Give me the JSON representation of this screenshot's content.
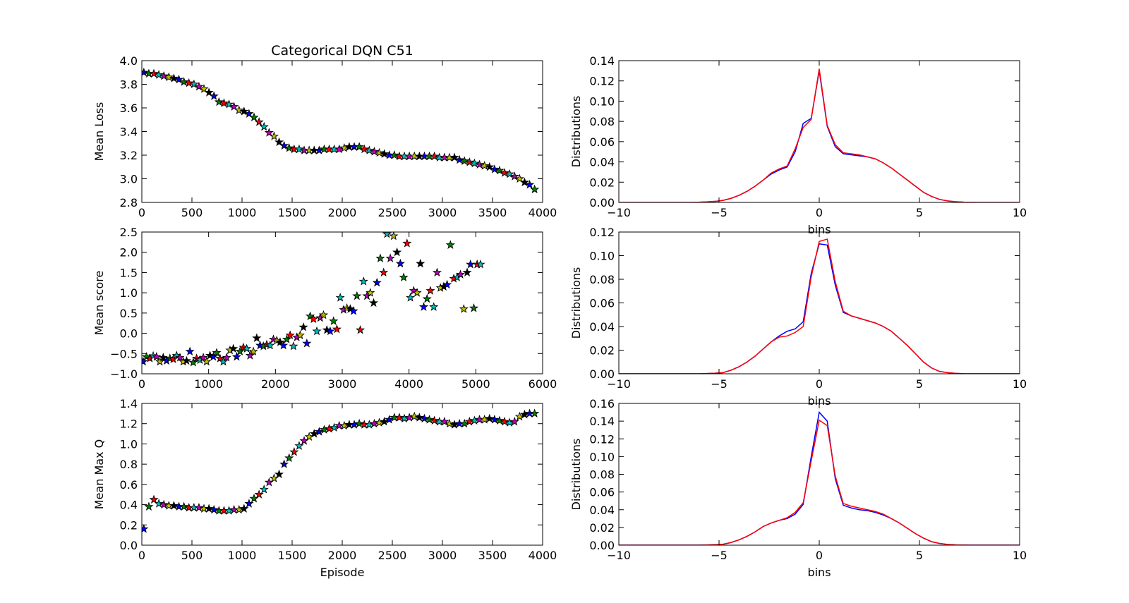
{
  "chart_data": [
    {
      "id": "loss",
      "type": "scatter",
      "title": "Categorical DQN C51",
      "xlabel": "",
      "ylabel": "Mean Loss",
      "xlim": [
        0,
        4000
      ],
      "ylim": [
        2.8,
        4.0
      ],
      "xticks": [
        0,
        500,
        1000,
        1500,
        2000,
        2500,
        3000,
        3500,
        4000
      ],
      "yticks": [
        2.8,
        3.0,
        3.2,
        3.4,
        3.6,
        3.8,
        4.0
      ],
      "marker": "star",
      "marker_colors": [
        "#0000ff",
        "#008000",
        "#ff0000",
        "#00bfbf",
        "#bf00bf",
        "#bfbf00",
        "#000000"
      ],
      "x": [
        20,
        70,
        120,
        170,
        220,
        270,
        320,
        370,
        420,
        470,
        520,
        570,
        620,
        670,
        720,
        770,
        820,
        870,
        920,
        970,
        1020,
        1070,
        1120,
        1170,
        1220,
        1270,
        1320,
        1370,
        1420,
        1470,
        1520,
        1570,
        1620,
        1670,
        1720,
        1770,
        1820,
        1870,
        1920,
        1970,
        2020,
        2070,
        2120,
        2170,
        2220,
        2270,
        2320,
        2370,
        2420,
        2470,
        2520,
        2570,
        2620,
        2670,
        2720,
        2770,
        2820,
        2870,
        2920,
        2970,
        3020,
        3070,
        3120,
        3170,
        3220,
        3270,
        3320,
        3370,
        3420,
        3470,
        3520,
        3570,
        3620,
        3670,
        3720,
        3770,
        3820,
        3870,
        3920
      ],
      "y": [
        3.9,
        3.89,
        3.89,
        3.88,
        3.87,
        3.86,
        3.85,
        3.84,
        3.82,
        3.81,
        3.8,
        3.78,
        3.76,
        3.73,
        3.7,
        3.65,
        3.64,
        3.63,
        3.61,
        3.58,
        3.57,
        3.55,
        3.52,
        3.48,
        3.44,
        3.39,
        3.36,
        3.31,
        3.28,
        3.26,
        3.25,
        3.25,
        3.24,
        3.24,
        3.24,
        3.24,
        3.25,
        3.25,
        3.25,
        3.25,
        3.26,
        3.27,
        3.27,
        3.27,
        3.25,
        3.24,
        3.23,
        3.22,
        3.21,
        3.2,
        3.2,
        3.19,
        3.19,
        3.19,
        3.19,
        3.19,
        3.19,
        3.19,
        3.19,
        3.18,
        3.18,
        3.18,
        3.18,
        3.16,
        3.15,
        3.14,
        3.13,
        3.12,
        3.11,
        3.1,
        3.08,
        3.07,
        3.05,
        3.04,
        3.02,
        3.0,
        2.97,
        2.95,
        2.91
      ]
    },
    {
      "id": "score",
      "type": "scatter",
      "title": "",
      "xlabel": "",
      "ylabel": "Mean score",
      "xlim": [
        0,
        6000
      ],
      "ylim": [
        -1.0,
        2.5
      ],
      "xticks": [
        0,
        1000,
        2000,
        3000,
        4000,
        5000,
        6000
      ],
      "yticks": [
        -1.0,
        -0.5,
        0.0,
        0.5,
        1.0,
        1.5,
        2.0,
        2.5
      ],
      "marker": "star",
      "marker_colors": [
        "#0000ff",
        "#008000",
        "#ff0000",
        "#00bfbf",
        "#bf00bf",
        "#bfbf00",
        "#000000"
      ],
      "x": [
        20,
        70,
        120,
        170,
        220,
        270,
        320,
        370,
        420,
        470,
        520,
        570,
        620,
        670,
        720,
        770,
        820,
        870,
        920,
        970,
        1020,
        1070,
        1120,
        1170,
        1220,
        1270,
        1320,
        1370,
        1420,
        1470,
        1520,
        1570,
        1620,
        1670,
        1720,
        1770,
        1820,
        1870,
        1920,
        1970,
        2020,
        2070,
        2120,
        2170,
        2220,
        2270,
        2320,
        2370,
        2420,
        2470,
        2520,
        2570,
        2620,
        2670,
        2720,
        2770,
        2820,
        2870,
        2920,
        2970,
        3020,
        3070,
        3120,
        3170,
        3220,
        3270,
        3320,
        3370,
        3420,
        3470,
        3520,
        3570,
        3620,
        3670,
        3720,
        3770,
        3820,
        3870,
        3920,
        3970,
        4020,
        4070,
        4120,
        4170,
        4220,
        4270,
        4320,
        4370,
        4420,
        4470,
        4520,
        4570,
        4620,
        4670,
        4720,
        4770,
        4820,
        4870,
        4920,
        4970,
        5020,
        5070
      ],
      "y": [
        -0.7,
        -0.58,
        -0.62,
        -0.56,
        -0.58,
        -0.7,
        -0.6,
        -0.68,
        -0.62,
        -0.64,
        -0.55,
        -0.6,
        -0.7,
        -0.68,
        -0.45,
        -0.72,
        -0.62,
        -0.66,
        -0.6,
        -0.7,
        -0.55,
        -0.58,
        -0.48,
        -0.62,
        -0.7,
        -0.6,
        -0.42,
        -0.38,
        -0.58,
        -0.45,
        -0.35,
        -0.38,
        -0.55,
        -0.45,
        -0.12,
        -0.3,
        -0.32,
        -0.28,
        -0.3,
        -0.15,
        -0.18,
        -0.22,
        -0.3,
        -0.15,
        -0.05,
        -0.32,
        -0.1,
        -0.05,
        0.15,
        -0.25,
        0.42,
        0.35,
        0.05,
        0.38,
        0.45,
        0.08,
        0.05,
        0.3,
        0.1,
        0.88,
        0.58,
        0.62,
        0.6,
        0.55,
        0.92,
        0.08,
        1.28,
        0.92,
        1.0,
        0.75,
        1.25,
        1.85,
        1.5,
        2.45,
        1.85,
        2.4,
        2.0,
        1.72,
        1.38,
        2.22,
        0.88,
        1.05,
        1.0,
        1.72,
        0.65,
        0.85,
        1.05,
        0.65,
        1.5,
        1.12,
        1.15,
        1.2,
        2.18,
        1.35,
        1.38,
        1.45,
        0.6,
        1.5,
        1.7,
        0.62,
        1.7,
        1.7
      ]
    },
    {
      "id": "maxq",
      "type": "scatter",
      "title": "",
      "xlabel": "Episode",
      "ylabel": "Mean Max Q",
      "xlim": [
        0,
        4000
      ],
      "ylim": [
        0.0,
        1.4
      ],
      "xticks": [
        0,
        500,
        1000,
        1500,
        2000,
        2500,
        3000,
        3500,
        4000
      ],
      "yticks": [
        0.0,
        0.2,
        0.4,
        0.6,
        0.8,
        1.0,
        1.2,
        1.4
      ],
      "marker": "star",
      "marker_colors": [
        "#0000ff",
        "#008000",
        "#ff0000",
        "#00bfbf",
        "#bf00bf",
        "#bfbf00",
        "#000000"
      ],
      "x": [
        20,
        70,
        120,
        170,
        220,
        270,
        320,
        370,
        420,
        470,
        520,
        570,
        620,
        670,
        720,
        770,
        820,
        870,
        920,
        970,
        1020,
        1070,
        1120,
        1170,
        1220,
        1270,
        1320,
        1370,
        1420,
        1470,
        1520,
        1570,
        1620,
        1670,
        1720,
        1770,
        1820,
        1870,
        1920,
        1970,
        2020,
        2070,
        2120,
        2170,
        2220,
        2270,
        2320,
        2370,
        2420,
        2470,
        2520,
        2570,
        2620,
        2670,
        2720,
        2770,
        2820,
        2870,
        2920,
        2970,
        3020,
        3070,
        3120,
        3170,
        3220,
        3270,
        3320,
        3370,
        3420,
        3470,
        3520,
        3570,
        3620,
        3670,
        3720,
        3770,
        3820,
        3870,
        3920
      ],
      "y": [
        0.16,
        0.38,
        0.45,
        0.41,
        0.4,
        0.39,
        0.39,
        0.38,
        0.38,
        0.37,
        0.37,
        0.37,
        0.36,
        0.36,
        0.35,
        0.34,
        0.34,
        0.34,
        0.35,
        0.35,
        0.36,
        0.41,
        0.46,
        0.5,
        0.55,
        0.62,
        0.66,
        0.7,
        0.8,
        0.86,
        0.92,
        0.98,
        1.03,
        1.07,
        1.1,
        1.12,
        1.14,
        1.15,
        1.16,
        1.18,
        1.18,
        1.19,
        1.19,
        1.2,
        1.19,
        1.19,
        1.2,
        1.21,
        1.22,
        1.24,
        1.26,
        1.26,
        1.25,
        1.26,
        1.27,
        1.26,
        1.25,
        1.24,
        1.23,
        1.22,
        1.22,
        1.2,
        1.19,
        1.2,
        1.2,
        1.22,
        1.23,
        1.24,
        1.24,
        1.25,
        1.24,
        1.23,
        1.22,
        1.21,
        1.22,
        1.27,
        1.29,
        1.3,
        1.3
      ]
    },
    {
      "id": "dist1",
      "type": "line",
      "title": "",
      "xlabel": "bins",
      "ylabel": "Distributions",
      "xlim": [
        -10,
        10
      ],
      "ylim": [
        0.0,
        0.14
      ],
      "xticks": [
        -10,
        -5,
        0,
        5,
        10
      ],
      "yticks": [
        0.0,
        0.02,
        0.04,
        0.06,
        0.08,
        0.1,
        0.12,
        0.14
      ],
      "x": [
        -10,
        -9.6,
        -9.2,
        -8.8,
        -8.4,
        -8,
        -7.6,
        -7.2,
        -6.8,
        -6.4,
        -6,
        -5.6,
        -5.2,
        -4.8,
        -4.4,
        -4,
        -3.6,
        -3.2,
        -2.8,
        -2.4,
        -2,
        -1.6,
        -1.2,
        -0.8,
        -0.4,
        0,
        0.4,
        0.8,
        1.2,
        1.6,
        2,
        2.4,
        2.8,
        3.2,
        3.6,
        4,
        4.4,
        4.8,
        5.2,
        5.6,
        6,
        6.4,
        6.8,
        7.2,
        7.6,
        8,
        8.4,
        8.8,
        9.2,
        9.6,
        10
      ],
      "series": [
        {
          "color": "#0000ff",
          "values": [
            0,
            0,
            0,
            0,
            0,
            0,
            0,
            0,
            0,
            0,
            0.0002,
            0.0005,
            0.001,
            0.002,
            0.004,
            0.007,
            0.011,
            0.016,
            0.022,
            0.028,
            0.032,
            0.035,
            0.05,
            0.078,
            0.083,
            0.13,
            0.075,
            0.055,
            0.048,
            0.047,
            0.046,
            0.045,
            0.043,
            0.039,
            0.034,
            0.028,
            0.022,
            0.016,
            0.01,
            0.006,
            0.003,
            0.0015,
            0.0007,
            0.0003,
            0.0001,
            0,
            0,
            0,
            0,
            0,
            0
          ]
        },
        {
          "color": "#ff0000",
          "values": [
            0,
            0,
            0,
            0,
            0,
            0,
            0,
            0,
            0,
            0,
            0.0002,
            0.0005,
            0.001,
            0.002,
            0.004,
            0.007,
            0.011,
            0.016,
            0.022,
            0.029,
            0.033,
            0.036,
            0.053,
            0.074,
            0.082,
            0.132,
            0.076,
            0.057,
            0.049,
            0.048,
            0.047,
            0.045,
            0.043,
            0.039,
            0.034,
            0.028,
            0.022,
            0.016,
            0.01,
            0.006,
            0.003,
            0.0015,
            0.0007,
            0.0003,
            0.0001,
            0,
            0,
            0,
            0,
            0,
            0
          ]
        }
      ]
    },
    {
      "id": "dist2",
      "type": "line",
      "title": "",
      "xlabel": "bins",
      "ylabel": "Distributions",
      "xlim": [
        -10,
        10
      ],
      "ylim": [
        0.0,
        0.12
      ],
      "xticks": [
        -10,
        -5,
        0,
        5,
        10
      ],
      "yticks": [
        0.0,
        0.02,
        0.04,
        0.06,
        0.08,
        0.1,
        0.12
      ],
      "x": [
        -10,
        -9.6,
        -9.2,
        -8.8,
        -8.4,
        -8,
        -7.6,
        -7.2,
        -6.8,
        -6.4,
        -6,
        -5.6,
        -5.2,
        -4.8,
        -4.4,
        -4,
        -3.6,
        -3.2,
        -2.8,
        -2.4,
        -2,
        -1.6,
        -1.2,
        -0.8,
        -0.4,
        0,
        0.4,
        0.8,
        1.2,
        1.6,
        2,
        2.4,
        2.8,
        3.2,
        3.6,
        4,
        4.4,
        4.8,
        5.2,
        5.6,
        6,
        6.4,
        6.8,
        7.2,
        7.6,
        8,
        8.4,
        8.8,
        9.2,
        9.6,
        10
      ],
      "series": [
        {
          "color": "#0000ff",
          "values": [
            0,
            0,
            0,
            0,
            0,
            0,
            0,
            0,
            0,
            0,
            0,
            0.0002,
            0.0005,
            0.001,
            0.003,
            0.006,
            0.01,
            0.015,
            0.021,
            0.027,
            0.032,
            0.036,
            0.038,
            0.044,
            0.085,
            0.11,
            0.109,
            0.075,
            0.052,
            0.049,
            0.047,
            0.045,
            0.043,
            0.04,
            0.036,
            0.03,
            0.024,
            0.017,
            0.01,
            0.005,
            0.002,
            0.001,
            0.0004,
            0.0001,
            0,
            0,
            0,
            0,
            0,
            0,
            0
          ]
        },
        {
          "color": "#ff0000",
          "values": [
            0,
            0,
            0,
            0,
            0,
            0,
            0,
            0,
            0,
            0,
            0,
            0.0002,
            0.0005,
            0.001,
            0.003,
            0.006,
            0.01,
            0.015,
            0.021,
            0.027,
            0.031,
            0.032,
            0.035,
            0.04,
            0.082,
            0.112,
            0.114,
            0.078,
            0.053,
            0.049,
            0.047,
            0.045,
            0.043,
            0.04,
            0.036,
            0.03,
            0.024,
            0.017,
            0.01,
            0.005,
            0.002,
            0.001,
            0.0004,
            0.0001,
            0,
            0,
            0,
            0,
            0,
            0,
            0
          ]
        }
      ]
    },
    {
      "id": "dist3",
      "type": "line",
      "title": "",
      "xlabel": "bins",
      "ylabel": "Distributions",
      "xlim": [
        -10,
        10
      ],
      "ylim": [
        0.0,
        0.16
      ],
      "xticks": [
        -10,
        -5,
        0,
        5,
        10
      ],
      "yticks": [
        0.0,
        0.02,
        0.04,
        0.06,
        0.08,
        0.1,
        0.12,
        0.14,
        0.16
      ],
      "x": [
        -10,
        -9.6,
        -9.2,
        -8.8,
        -8.4,
        -8,
        -7.6,
        -7.2,
        -6.8,
        -6.4,
        -6,
        -5.6,
        -5.2,
        -4.8,
        -4.4,
        -4,
        -3.6,
        -3.2,
        -2.8,
        -2.4,
        -2,
        -1.6,
        -1.2,
        -0.8,
        -0.4,
        0,
        0.4,
        0.8,
        1.2,
        1.6,
        2,
        2.4,
        2.8,
        3.2,
        3.6,
        4,
        4.4,
        4.8,
        5.2,
        5.6,
        6,
        6.4,
        6.8,
        7.2,
        7.6,
        8,
        8.4,
        8.8,
        9.2,
        9.6,
        10
      ],
      "series": [
        {
          "color": "#0000ff",
          "values": [
            0,
            0,
            0,
            0,
            0,
            0,
            0,
            0,
            0,
            0,
            0,
            0.0002,
            0.0005,
            0.001,
            0.003,
            0.006,
            0.01,
            0.015,
            0.021,
            0.025,
            0.028,
            0.03,
            0.035,
            0.046,
            0.1,
            0.15,
            0.14,
            0.075,
            0.045,
            0.042,
            0.04,
            0.039,
            0.037,
            0.034,
            0.03,
            0.025,
            0.019,
            0.013,
            0.008,
            0.004,
            0.002,
            0.0008,
            0.0003,
            0.0001,
            0,
            0,
            0,
            0,
            0,
            0,
            0
          ]
        },
        {
          "color": "#ff0000",
          "values": [
            0,
            0,
            0,
            0,
            0,
            0,
            0,
            0,
            0,
            0,
            0,
            0.0002,
            0.0005,
            0.001,
            0.003,
            0.006,
            0.01,
            0.015,
            0.021,
            0.025,
            0.028,
            0.031,
            0.037,
            0.048,
            0.095,
            0.141,
            0.135,
            0.078,
            0.047,
            0.044,
            0.042,
            0.04,
            0.038,
            0.035,
            0.03,
            0.025,
            0.019,
            0.013,
            0.008,
            0.004,
            0.002,
            0.0008,
            0.0003,
            0.0001,
            0,
            0,
            0,
            0,
            0,
            0,
            0
          ]
        }
      ]
    }
  ]
}
